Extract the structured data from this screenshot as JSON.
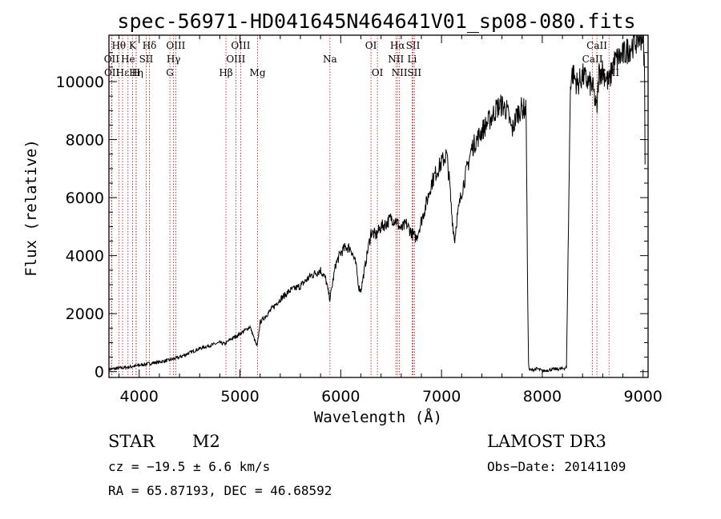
{
  "chart_data": {
    "type": "line",
    "title": "spec-56971-HD041645N464641V01_sp08-080.fits",
    "xlabel": "Wavelength (Å)",
    "ylabel": "Flux (relative)",
    "xlim": [
      3700,
      9050
    ],
    "ylim": [
      -200,
      11600
    ],
    "xticks": [
      4000,
      5000,
      6000,
      7000,
      8000,
      9000
    ],
    "yticks": [
      0,
      2000,
      4000,
      6000,
      8000,
      10000
    ],
    "series": [
      {
        "name": "spectrum",
        "x": [
          3700,
          3800,
          3900,
          4000,
          4100,
          4200,
          4300,
          4400,
          4500,
          4600,
          4700,
          4800,
          4850,
          4900,
          5000,
          5100,
          5170,
          5200,
          5300,
          5400,
          5500,
          5600,
          5700,
          5800,
          5850,
          5893,
          5950,
          6000,
          6050,
          6100,
          6150,
          6180,
          6200,
          6250,
          6300,
          6350,
          6400,
          6450,
          6500,
          6550,
          6600,
          6650,
          6700,
          6750,
          6800,
          6850,
          6900,
          6950,
          7000,
          7050,
          7080,
          7100,
          7130,
          7150,
          7200,
          7300,
          7400,
          7500,
          7550,
          7600,
          7650,
          7700,
          7750,
          7800,
          7840,
          7855,
          7865,
          7880,
          7950,
          8000,
          8100,
          8200,
          8240,
          8260,
          8280,
          8300,
          8350,
          8400,
          8450,
          8500,
          8542,
          8560,
          8600,
          8662,
          8700,
          8750,
          8800,
          8850,
          8900,
          8950,
          9000,
          9015,
          9020
        ],
        "y": [
          80,
          120,
          160,
          220,
          280,
          330,
          400,
          500,
          650,
          800,
          900,
          1000,
          950,
          1100,
          1300,
          1550,
          850,
          1700,
          2100,
          2500,
          2800,
          2950,
          3300,
          3500,
          3200,
          2500,
          3700,
          4100,
          4300,
          4250,
          3700,
          2900,
          2800,
          3800,
          4800,
          4700,
          5000,
          5100,
          5300,
          5200,
          4900,
          5100,
          4800,
          4600,
          5200,
          5800,
          6500,
          6900,
          7200,
          7500,
          6500,
          5500,
          4500,
          5200,
          6200,
          7700,
          8300,
          8800,
          9100,
          9200,
          9000,
          8300,
          8900,
          9100,
          9000,
          2500,
          100,
          50,
          100,
          20,
          80,
          100,
          150,
          5000,
          10000,
          10300,
          9900,
          10200,
          10000,
          9800,
          9000,
          10300,
          10400,
          9900,
          10600,
          10800,
          10900,
          11100,
          11300,
          11500,
          11600,
          10500,
          7000
        ]
      }
    ],
    "line_markers": [
      {
        "label": "Hθ",
        "x": 3798,
        "row": 1
      },
      {
        "label": "OII",
        "x": 3727,
        "row": 2
      },
      {
        "label": "OII",
        "x": 3729,
        "row": 3
      },
      {
        "label": "Hε",
        "x": 3835,
        "row": 3
      },
      {
        "label": "He",
        "x": 3889,
        "row": 2
      },
      {
        "label": "K",
        "x": 3934,
        "row": 1
      },
      {
        "label": "SII",
        "x": 4069,
        "row": 2
      },
      {
        "label": "H",
        "x": 3969,
        "row": 3
      },
      {
        "label": "Hη",
        "x": 3970,
        "row": 3
      },
      {
        "label": "Hδ",
        "x": 4102,
        "row": 1
      },
      {
        "label": "OIII",
        "x": 4363,
        "row": 1
      },
      {
        "label": "Hγ",
        "x": 4341,
        "row": 2
      },
      {
        "label": "G",
        "x": 4305,
        "row": 3
      },
      {
        "label": "OIII",
        "x": 5007,
        "row": 1
      },
      {
        "label": "OIII",
        "x": 4959,
        "row": 2
      },
      {
        "label": "Hβ",
        "x": 4861,
        "row": 3
      },
      {
        "label": "Mg",
        "x": 5175,
        "row": 3
      },
      {
        "label": "Na",
        "x": 5893,
        "row": 2
      },
      {
        "label": "OI",
        "x": 6300,
        "row": 1
      },
      {
        "label": "OI",
        "x": 6364,
        "row": 3
      },
      {
        "label": "Hα",
        "x": 6563,
        "row": 1
      },
      {
        "label": "SII",
        "x": 6717,
        "row": 1
      },
      {
        "label": "NII",
        "x": 6548,
        "row": 2
      },
      {
        "label": "Li",
        "x": 6708,
        "row": 2
      },
      {
        "label": "NII",
        "x": 6583,
        "row": 3
      },
      {
        "label": "SII",
        "x": 6731,
        "row": 3
      },
      {
        "label": "CaII",
        "x": 8542,
        "row": 1
      },
      {
        "label": "CaII",
        "x": 8498,
        "row": 2
      },
      {
        "label": "CaII",
        "x": 8662,
        "row": 3
      }
    ]
  },
  "info": {
    "class_label": "STAR",
    "subclass": "M2",
    "survey": "LAMOST DR3",
    "cz": "cz = −19.5 ± 6.6 km/s",
    "obs_date": "Obs−Date: 20141109",
    "radec": "RA =  65.87193, DEC =  46.68592"
  },
  "colors": {
    "spectrum": "#000000",
    "marker_line": "#b01010"
  }
}
